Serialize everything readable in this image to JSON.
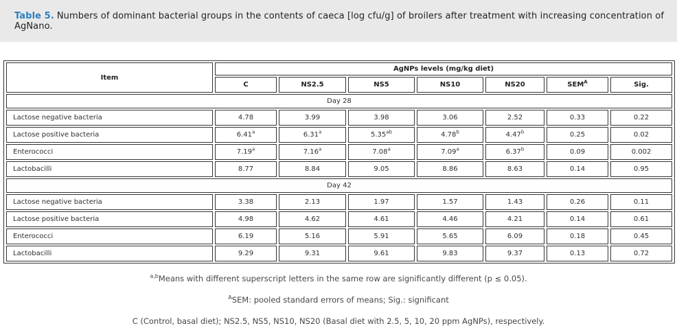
{
  "caption": {
    "label": "Table 5.",
    "text": "Numbers of dominant bacterial groups in the contents of caeca [log cfu/g] of broilers after treatment with increasing concentration of AgNano."
  },
  "table": {
    "item_header": "Item",
    "group_header": "AgNPs levels (mg/kg diet)",
    "columns": [
      "C",
      "NS2.5",
      "NS5",
      "NS10",
      "NS20",
      "SEM^A",
      "Sig."
    ],
    "sections": [
      {
        "label": "Day 28",
        "rows": [
          {
            "item": "Lactose negative bacteria",
            "values": [
              "4.78",
              "3.99",
              "3.98",
              "3.06",
              "2.52",
              "0.33",
              "0.22"
            ]
          },
          {
            "item": "Lactose positive bacteria",
            "values": [
              "6.41^a",
              "6.31^a",
              "5.35^ab",
              "4.78^b",
              "4.47^b",
              "0.25",
              "0.02"
            ]
          },
          {
            "item": "Enterococci",
            "values": [
              "7.19^a",
              "7.16^a",
              "7.08^a",
              "7.09^a",
              "6.37^b",
              "0.09",
              "0.002"
            ]
          },
          {
            "item": "Lactobacilli",
            "values": [
              "8.77",
              "8.84",
              "9.05",
              "8.86",
              "8.63",
              "0.14",
              "0.95"
            ]
          }
        ]
      },
      {
        "label": "Day 42",
        "rows": [
          {
            "item": "Lactose negative bacteria",
            "values": [
              "3.38",
              "2.13",
              "1.97",
              "1.57",
              "1.43",
              "0.26",
              "0.11"
            ]
          },
          {
            "item": "Lactose positive bacteria",
            "values": [
              "4.98",
              "4.62",
              "4.61",
              "4.46",
              "4.21",
              "0.14",
              "0.61"
            ]
          },
          {
            "item": "Enterococci",
            "values": [
              "6.19",
              "5.16",
              "5.91",
              "5.65",
              "6.09",
              "0.18",
              "0.45"
            ]
          },
          {
            "item": "Lactobacilli",
            "values": [
              "9.29",
              "9.31",
              "9.61",
              "9.83",
              "9.37",
              "0.13",
              "0.72"
            ]
          }
        ]
      }
    ]
  },
  "footnotes": [
    {
      "sup": "a,b",
      "text": "Means with different superscript letters in the same row are significantly different (p ≤ 0.05)."
    },
    {
      "sup": "A",
      "text": "SEM: pooled standard errors of means; Sig.: significant"
    },
    {
      "sup": "",
      "text": "C (Control, basal diet); NS2.5, NS5, NS10, NS20 (Basal diet with 2.5, 5, 10, 20 ppm AgNPs), respectively."
    }
  ]
}
